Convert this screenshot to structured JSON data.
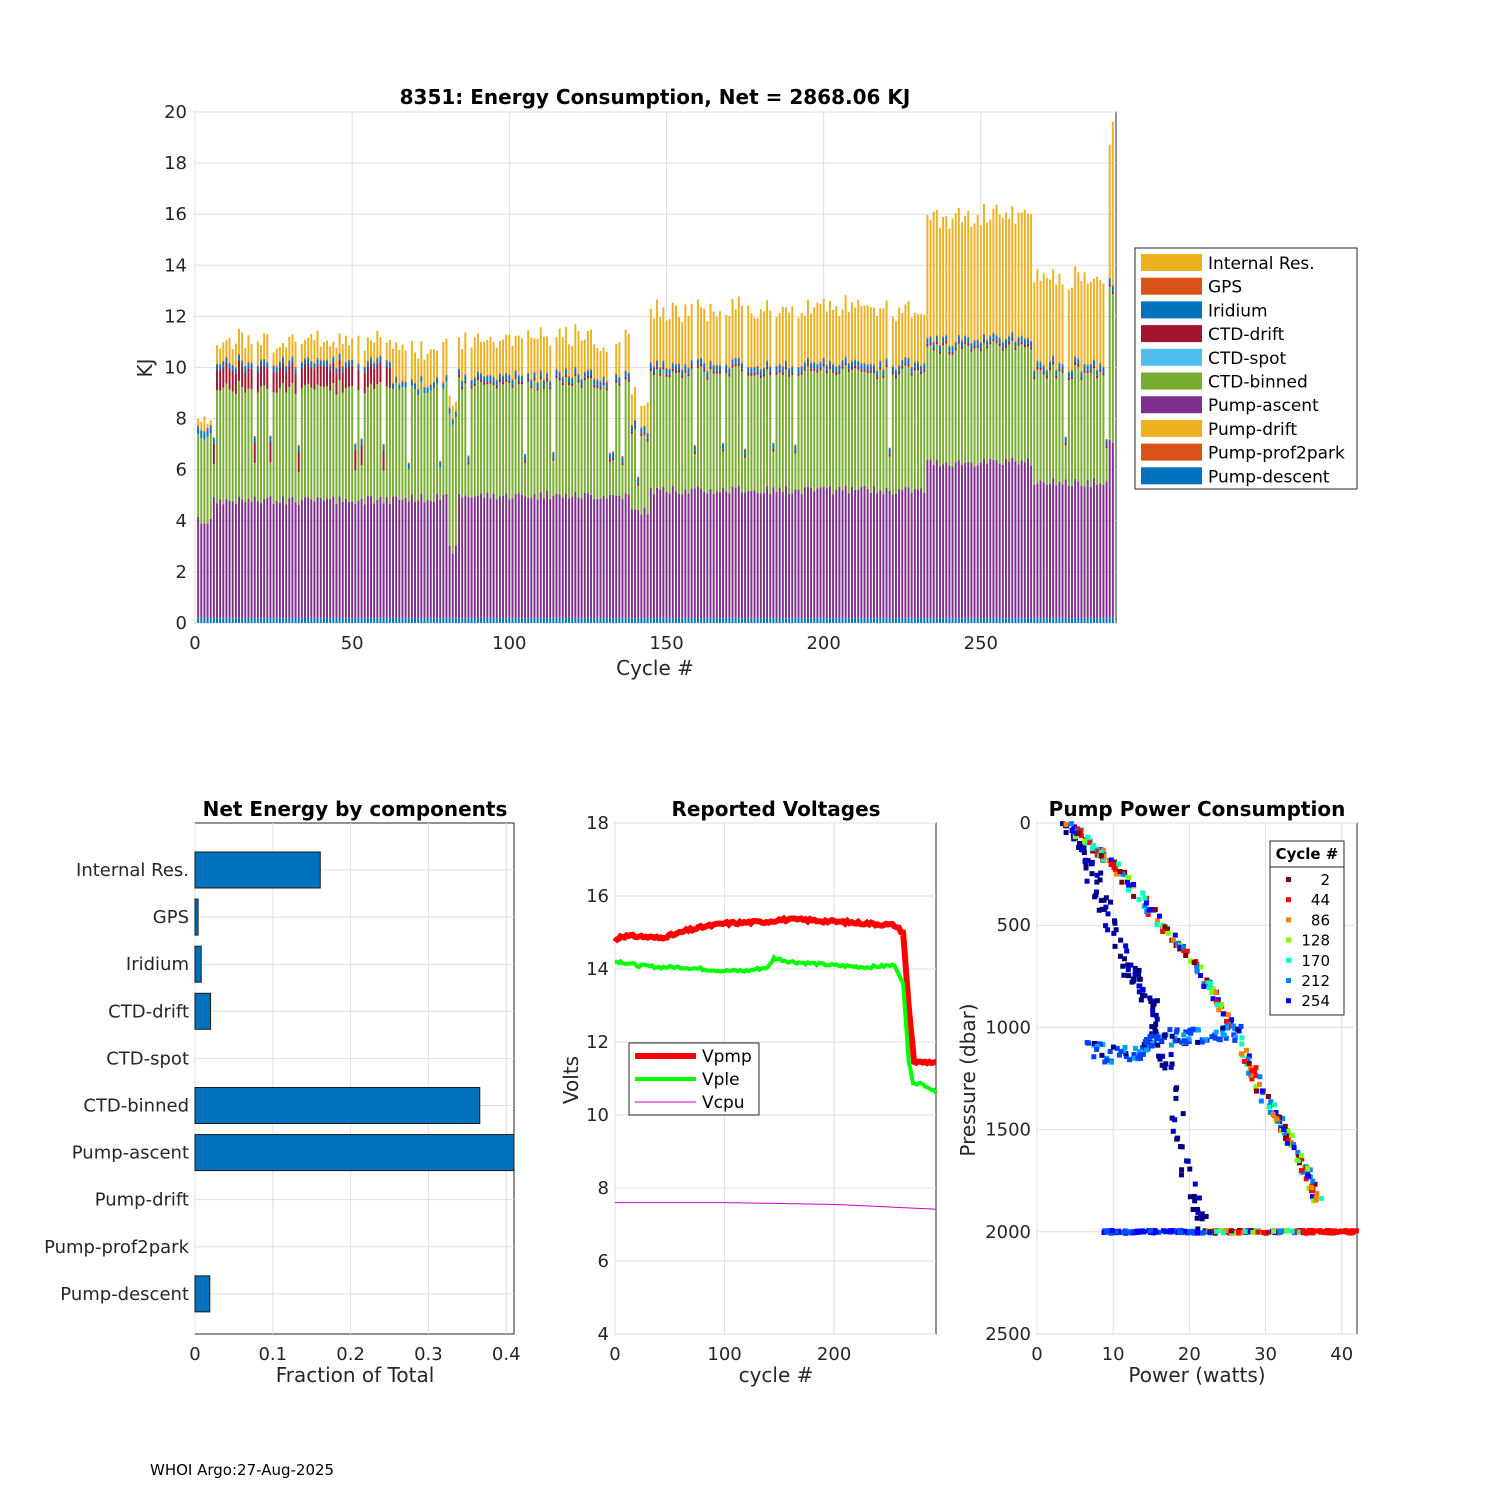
{
  "footer": "WHOI Argo:27-Aug-2025",
  "chart_data": [
    {
      "type": "bar",
      "stacked": true,
      "title": "8351: Energy Consumption,  Net = 2868.06 KJ",
      "xlabel": "Cycle #",
      "ylabel": "KJ",
      "xlim": [
        0,
        293
      ],
      "ylim": [
        0,
        20
      ],
      "xticks": [
        0,
        50,
        100,
        150,
        200,
        250
      ],
      "yticks": [
        0,
        2,
        4,
        6,
        8,
        10,
        12,
        14,
        16,
        18,
        20
      ],
      "grid": true,
      "legend_position": "right",
      "components": [
        {
          "name": "Internal Res.",
          "color": "#EDB120"
        },
        {
          "name": "GPS",
          "color": "#D95319"
        },
        {
          "name": "Iridium",
          "color": "#0072BD"
        },
        {
          "name": "CTD-drift",
          "color": "#A2142F"
        },
        {
          "name": "CTD-spot",
          "color": "#4DBEEE"
        },
        {
          "name": "CTD-binned",
          "color": "#77AC30"
        },
        {
          "name": "Pump-ascent",
          "color": "#7E2F8E"
        },
        {
          "name": "Pump-drift",
          "color": "#EDB120"
        },
        {
          "name": "Pump-prof2park",
          "color": "#D95319"
        },
        {
          "name": "Pump-descent",
          "color": "#0072BD"
        }
      ],
      "cycle_profile": {
        "description": "approximate stacked energy by cycle range (KJ)",
        "segments": [
          {
            "cycles": [
              0,
              5
            ],
            "pump_ascent": 3.8,
            "ctd_binned": 3.4,
            "ctd_drift": 0.0,
            "iridium": 0.3,
            "internal_res": 0.3
          },
          {
            "cycles": [
              6,
              62
            ],
            "pump_ascent": 4.6,
            "ctd_binned": 4.4,
            "ctd_drift": 0.8,
            "iridium": 0.2,
            "internal_res": 0.8
          },
          {
            "cycles": [
              63,
              80
            ],
            "pump_ascent": 4.7,
            "ctd_binned": 4.3,
            "ctd_drift": 0.0,
            "iridium": 0.2,
            "internal_res": 1.3
          },
          {
            "cycles": [
              81,
              83
            ],
            "pump_ascent": 2.7,
            "ctd_binned": 5.0,
            "ctd_drift": 0.0,
            "iridium": 0.2,
            "internal_res": 0.6
          },
          {
            "cycles": [
              84,
              138
            ],
            "pump_ascent": 4.8,
            "ctd_binned": 4.4,
            "ctd_drift": 0.1,
            "iridium": 0.2,
            "internal_res": 1.4
          },
          {
            "cycles": [
              139,
              144
            ],
            "pump_ascent": 4.2,
            "ctd_binned": 3.0,
            "ctd_drift": 0.1,
            "iridium": 0.2,
            "internal_res": 1.0
          },
          {
            "cycles": [
              145,
              232
            ],
            "pump_ascent": 5.0,
            "ctd_binned": 4.6,
            "ctd_drift": 0.1,
            "iridium": 0.2,
            "internal_res": 2.1
          },
          {
            "cycles": [
              233,
              266
            ],
            "pump_ascent": 6.1,
            "ctd_binned": 4.5,
            "ctd_drift": 0.1,
            "iridium": 0.2,
            "internal_res": 4.8
          },
          {
            "cycles": [
              267,
              290
            ],
            "pump_ascent": 5.3,
            "ctd_binned": 4.3,
            "ctd_drift": 0.1,
            "iridium": 0.2,
            "internal_res": 3.4
          },
          {
            "cycles": [
              291,
              293
            ],
            "pump_ascent": 6.8,
            "ctd_binned": 5.9,
            "ctd_drift": 0.1,
            "iridium": 0.2,
            "internal_res": 5.8
          }
        ]
      }
    },
    {
      "type": "bar",
      "orientation": "horizontal",
      "title": "Net Energy by components",
      "xlabel": "Fraction of Total",
      "xlim": [
        0,
        0.41
      ],
      "xticks": [
        0,
        0.1,
        0.2,
        0.3,
        0.4
      ],
      "categories": [
        "Internal Res.",
        "GPS",
        "Iridium",
        "CTD-drift",
        "CTD-spot",
        "CTD-binned",
        "Pump-ascent",
        "Pump-drift",
        "Pump-prof2park",
        "Pump-descent"
      ],
      "values": [
        0.161,
        0.004,
        0.008,
        0.02,
        0.0,
        0.366,
        0.415,
        0.0,
        0.0,
        0.019
      ],
      "color": "#0072BD",
      "grid": true
    },
    {
      "type": "line",
      "title": "Reported Voltages",
      "xlabel": "cycle #",
      "ylabel": "Volts",
      "xlim": [
        0,
        293
      ],
      "ylim": [
        4,
        18
      ],
      "xticks": [
        0,
        100,
        200
      ],
      "yticks": [
        4,
        6,
        8,
        10,
        12,
        14,
        16,
        18
      ],
      "legend_position": "middle-left",
      "series": [
        {
          "name": "Vpmp",
          "color": "#FF0000",
          "x": [
            0,
            5,
            20,
            40,
            55,
            65,
            80,
            100,
            140,
            150,
            170,
            200,
            230,
            255,
            263,
            268,
            273,
            293
          ],
          "y": [
            14.75,
            14.9,
            14.9,
            14.85,
            14.95,
            15.05,
            15.15,
            15.25,
            15.3,
            15.35,
            15.35,
            15.3,
            15.25,
            15.2,
            15.0,
            13.0,
            11.45,
            11.45
          ]
        },
        {
          "name": "Vple",
          "color": "#00FF00",
          "x": [
            0,
            5,
            20,
            40,
            60,
            80,
            100,
            120,
            140,
            145,
            160,
            180,
            200,
            230,
            255,
            263,
            268,
            272,
            285,
            293
          ],
          "y": [
            14.2,
            14.2,
            14.1,
            14.05,
            14.05,
            14.0,
            13.95,
            13.95,
            14.05,
            14.3,
            14.2,
            14.15,
            14.1,
            14.05,
            14.1,
            13.6,
            11.5,
            10.9,
            10.8,
            10.6
          ]
        },
        {
          "name": "Vcpu",
          "color": "#CC00CC",
          "x": [
            0,
            100,
            200,
            293
          ],
          "y": [
            7.6,
            7.6,
            7.55,
            7.42
          ]
        }
      ]
    },
    {
      "type": "scatter",
      "title": "Pump Power Consumption",
      "xlabel": "Power (watts)",
      "ylabel": "Pressure (dbar)",
      "xlim": [
        0,
        42
      ],
      "ylim": [
        0,
        2500
      ],
      "y_reversed": true,
      "xticks": [
        0,
        10,
        20,
        30,
        40
      ],
      "yticks": [
        0,
        500,
        1000,
        1500,
        2000,
        2500
      ],
      "legend_title": "Cycle #",
      "legend_position": "top-right",
      "series": [
        {
          "name": "2",
          "color": "#800000"
        },
        {
          "name": "44",
          "color": "#FF0000"
        },
        {
          "name": "86",
          "color": "#FF8000"
        },
        {
          "name": "128",
          "color": "#80FF00"
        },
        {
          "name": "170",
          "color": "#00FFC0"
        },
        {
          "name": "212",
          "color": "#0080FF"
        },
        {
          "name": "254",
          "color": "#0000FF"
        }
      ],
      "trajectories": {
        "ascent_line": [
          [
            4,
            0
          ],
          [
            10,
            200
          ],
          [
            16,
            480
          ],
          [
            21,
            700
          ],
          [
            25,
            950
          ],
          [
            30,
            1350
          ],
          [
            34,
            1600
          ],
          [
            37,
            1850
          ]
        ],
        "descent_lower": [
          [
            4,
            0
          ],
          [
            7,
            200
          ],
          [
            9,
            450
          ],
          [
            12,
            700
          ],
          [
            15,
            900
          ],
          [
            18,
            1300
          ],
          [
            20,
            1800
          ],
          [
            22,
            2000
          ]
        ],
        "bottom_line": [
          [
            9,
            2000
          ],
          [
            20,
            2000
          ],
          [
            30,
            2000
          ],
          [
            42,
            2000
          ]
        ],
        "park_cluster": [
          [
            7,
            1100
          ],
          [
            12,
            1150
          ],
          [
            16,
            1050
          ],
          [
            21,
            1050
          ],
          [
            26,
            1020
          ]
        ]
      }
    }
  ]
}
